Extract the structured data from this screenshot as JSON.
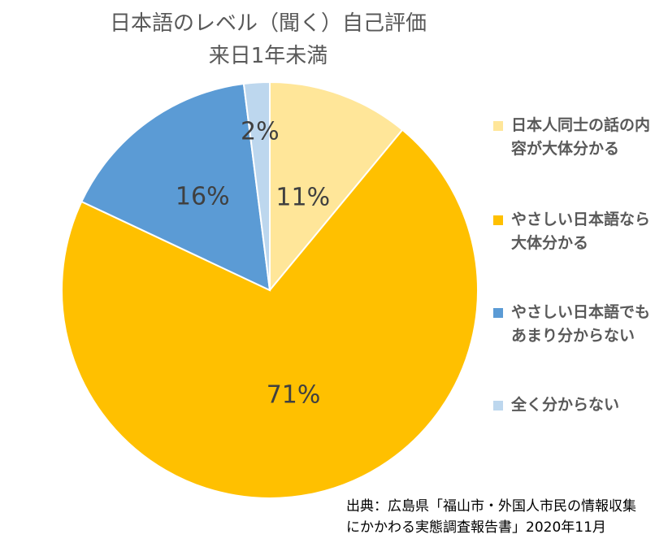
{
  "title": "日本語のレベル（聞く）自己評価",
  "subtitle": "来日1年未満",
  "chart_data": {
    "type": "pie",
    "title": "日本語のレベル（聞く）自己評価",
    "subtitle": "来日1年未満",
    "categories": [
      "日本人同士の話の内容が大体分かる",
      "やさしい日本語なら大体分かる",
      "やさしい日本語でもあまり分からない",
      "全く分からない"
    ],
    "values": [
      11,
      71,
      16,
      2
    ],
    "data_labels": [
      "11%",
      "71%",
      "16%",
      "2%"
    ],
    "colors": [
      "#FFE699",
      "#FFC000",
      "#5B9BD5",
      "#BDD7EE"
    ],
    "legend_position": "right"
  },
  "legend": [
    {
      "label": "日本人同士の話の内容が大体分かる",
      "color": "#FFE699"
    },
    {
      "label": "やさしい日本語なら大体分かる",
      "color": "#FFC000"
    },
    {
      "label": "やさしい日本語でもあまり分からない",
      "color": "#5B9BD5"
    },
    {
      "label": "全く分からない",
      "color": "#BDD7EE"
    }
  ],
  "source": "出典：広島県「福山市・外国人市民の情報収集にかかわる実態調査報告書」2020年11月"
}
